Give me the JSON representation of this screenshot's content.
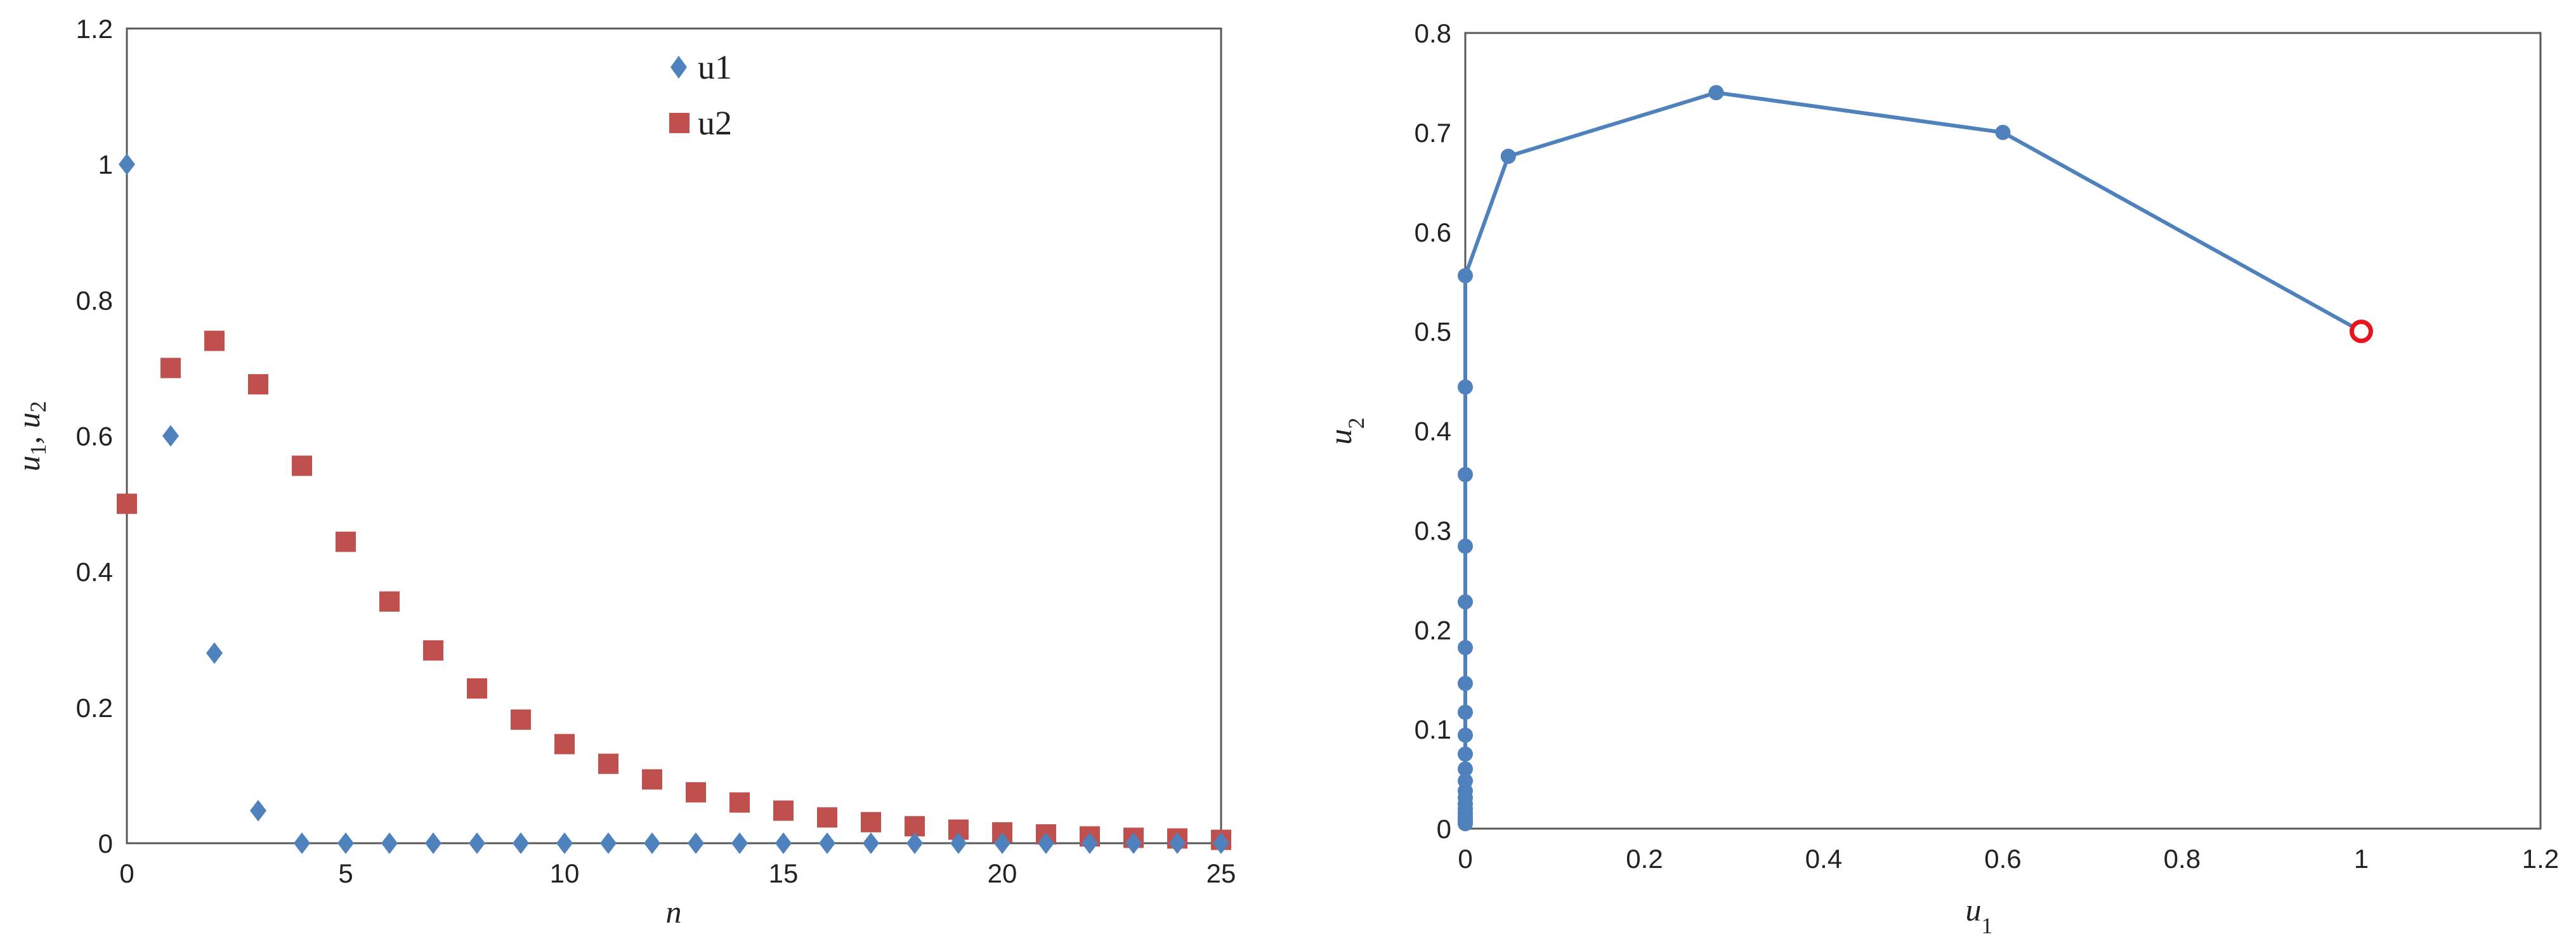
{
  "chart_data": [
    {
      "type": "scatter",
      "title": "",
      "xlabel": "n",
      "ylabel": "u1, u2",
      "xlim": [
        0,
        25
      ],
      "ylim": [
        0,
        1.2
      ],
      "xticks": [
        0,
        5,
        10,
        15,
        20,
        25
      ],
      "yticks": [
        0,
        0.2,
        0.4,
        0.6,
        0.8,
        1,
        1.2
      ],
      "grid": false,
      "legend": "top-center",
      "x": [
        0,
        1,
        2,
        3,
        4,
        5,
        6,
        7,
        8,
        9,
        10,
        11,
        12,
        13,
        14,
        15,
        16,
        17,
        18,
        19,
        20,
        21,
        22,
        23,
        24,
        25
      ],
      "series": [
        {
          "name": "u1",
          "color": "#4F81BD",
          "marker": "diamond",
          "values": [
            1.0,
            0.6,
            0.28,
            0.048,
            0,
            0,
            0,
            0,
            0,
            0,
            0,
            0,
            0,
            0,
            0,
            0,
            0,
            0,
            0,
            0,
            0,
            0,
            0,
            0,
            0,
            0
          ]
        },
        {
          "name": "u2",
          "color": "#C0504D",
          "marker": "square",
          "values": [
            0.5,
            0.7,
            0.74,
            0.676,
            0.556,
            0.444,
            0.356,
            0.284,
            0.228,
            0.182,
            0.146,
            0.117,
            0.094,
            0.075,
            0.06,
            0.048,
            0.038,
            0.031,
            0.025,
            0.02,
            0.016,
            0.013,
            0.01,
            0.008,
            0.007,
            0.005
          ]
        }
      ]
    },
    {
      "type": "line",
      "title": "",
      "xlabel": "u1",
      "ylabel": "u2",
      "xlim": [
        0,
        1.2
      ],
      "ylim": [
        0,
        0.8
      ],
      "xticks": [
        0,
        0.2,
        0.4,
        0.6,
        0.8,
        1,
        1.2
      ],
      "yticks": [
        0,
        0.1,
        0.2,
        0.3,
        0.4,
        0.5,
        0.6,
        0.7,
        0.8
      ],
      "grid": false,
      "color": "#4F81BD",
      "highlight_color": "#E8141E",
      "highlight_point": [
        1.0,
        0.5
      ],
      "x": [
        1.0,
        0.6,
        0.28,
        0.048,
        0,
        0,
        0,
        0,
        0,
        0,
        0,
        0,
        0,
        0,
        0,
        0,
        0,
        0,
        0,
        0,
        0,
        0,
        0,
        0,
        0,
        0
      ],
      "y": [
        0.5,
        0.7,
        0.74,
        0.676,
        0.556,
        0.444,
        0.356,
        0.284,
        0.228,
        0.182,
        0.146,
        0.117,
        0.094,
        0.075,
        0.06,
        0.048,
        0.038,
        0.031,
        0.025,
        0.02,
        0.016,
        0.013,
        0.01,
        0.008,
        0.007,
        0.005
      ]
    }
  ]
}
